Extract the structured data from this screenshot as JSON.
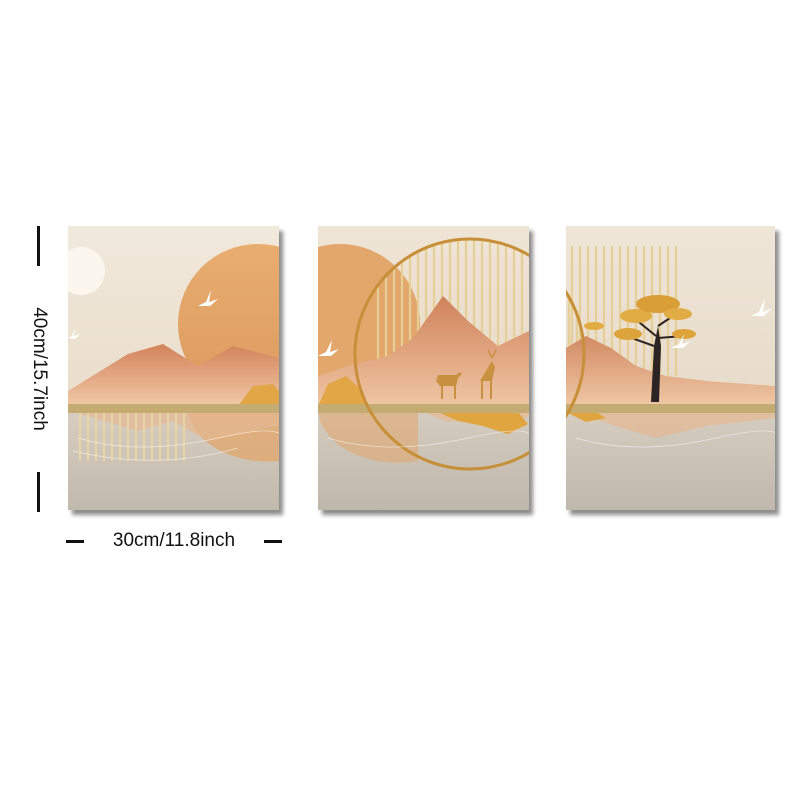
{
  "product": {
    "panels": [
      "left-panel",
      "center-panel",
      "right-panel"
    ],
    "width_label": "30cm/11.8inch",
    "height_label": "40cm/15.7inch",
    "colors": {
      "sky_top": "#efe7da",
      "sky_bottom": "#d9c9b2",
      "sun": "#e2a56a",
      "mountain": "#d88f63",
      "gold": "#d9a441",
      "ring": "#c9923a",
      "water": "#c8bfb2",
      "shelf": "#b79a5c"
    }
  }
}
